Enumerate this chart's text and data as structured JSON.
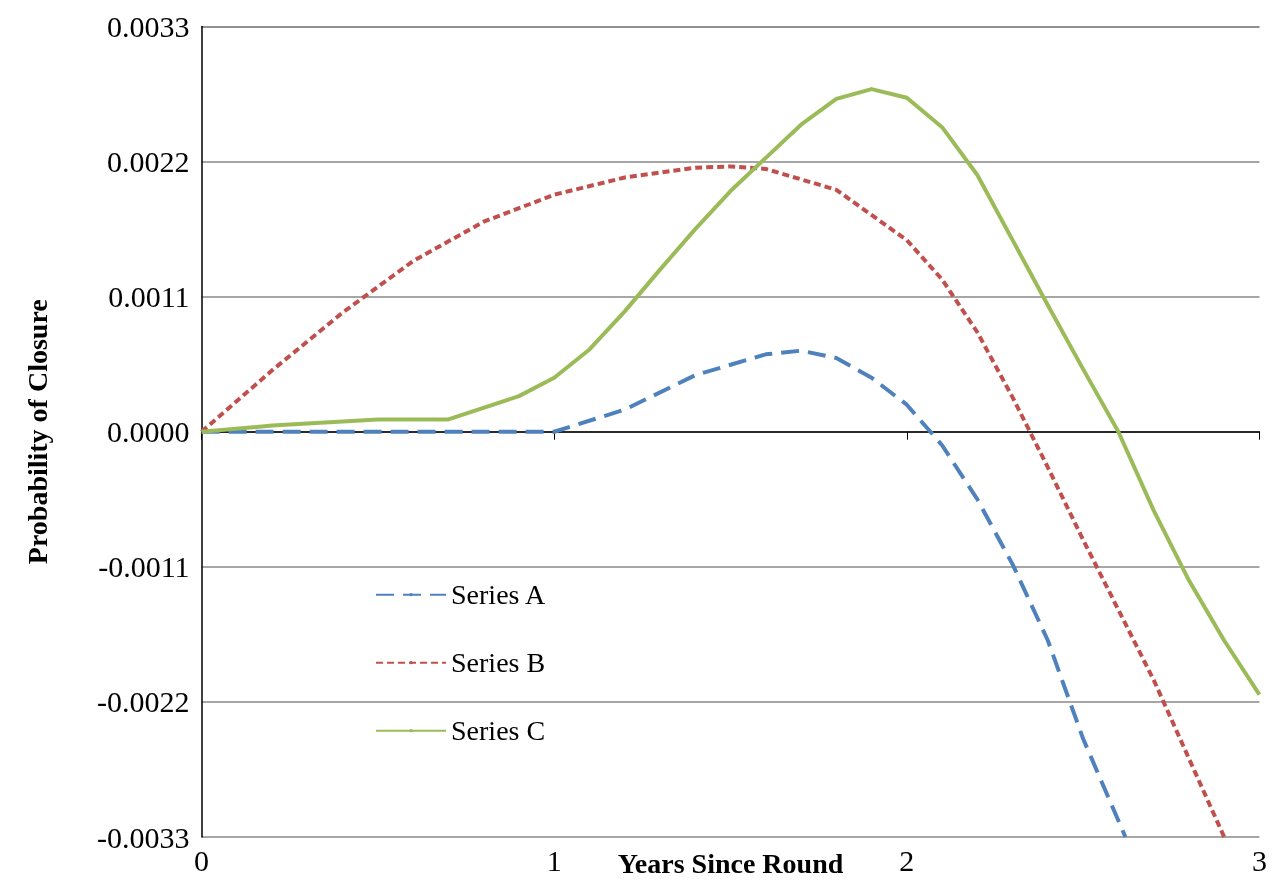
{
  "chart_data": {
    "type": "line",
    "xlabel": "Years Since Round",
    "ylabel": "Probability of Closure",
    "xlim": [
      0,
      3
    ],
    "xticks": [
      0,
      1,
      2,
      3
    ],
    "ylim": [
      -0.0033,
      0.0033
    ],
    "yticks": [
      -0.0033,
      -0.0022,
      -0.0011,
      {
        "value": 0,
        "label": "0.0000"
      },
      0.0011,
      0.0022,
      0.0033
    ],
    "grid": "y",
    "legend": "bottom left",
    "marker": "none",
    "series": [
      {
        "name": "Series A",
        "color": "#4f81bd",
        "line_style": "dashed",
        "x": [
          0,
          0.5,
          1.0,
          1.2,
          1.4,
          1.6,
          1.7,
          1.8,
          1.9,
          2.0,
          2.1,
          2.2,
          2.3,
          2.4,
          2.5,
          2.62
        ],
        "values": [
          0,
          0,
          0,
          0.00018,
          0.00046,
          0.00063,
          0.00066,
          0.0006,
          0.00044,
          0.00022,
          -0.00011,
          -0.00055,
          -0.00108,
          -0.0017,
          -0.0025,
          -0.0033
        ]
      },
      {
        "name": "Series B",
        "color": "#c0504d",
        "line_style": "dotted",
        "x": [
          0,
          0.2,
          0.4,
          0.6,
          0.8,
          1.0,
          1.2,
          1.4,
          1.5,
          1.6,
          1.8,
          2.0,
          2.1,
          2.2,
          2.3,
          2.4,
          2.5,
          2.6,
          2.7,
          2.8,
          2.9
        ],
        "values": [
          0,
          0.0005,
          0.00097,
          0.00139,
          0.00171,
          0.00193,
          0.00207,
          0.00215,
          0.00216,
          0.00214,
          0.00197,
          0.00156,
          0.00124,
          0.00081,
          0.00028,
          -0.00029,
          -0.00088,
          -0.00145,
          -0.00202,
          -0.00266,
          -0.0033
        ]
      },
      {
        "name": "Series C",
        "color": "#9bbb59",
        "line_style": "solid",
        "x": [
          0,
          0.2,
          0.5,
          0.7,
          0.9,
          1.0,
          1.1,
          1.2,
          1.3,
          1.4,
          1.5,
          1.6,
          1.7,
          1.8,
          1.9,
          2.0,
          2.1,
          2.2,
          2.3,
          2.4,
          2.5,
          2.6,
          2.7,
          2.8,
          2.9,
          3.0
        ],
        "values": [
          0,
          5e-05,
          0.0001,
          0.0001,
          0.00029,
          0.00044,
          0.00067,
          0.00098,
          0.00132,
          0.00165,
          0.00196,
          0.00223,
          0.0025,
          0.00271,
          0.00279,
          0.00272,
          0.00248,
          0.00209,
          0.00156,
          0.00103,
          0.00051,
          0,
          -0.00064,
          -0.00121,
          -0.0017,
          -0.00214
        ]
      }
    ]
  }
}
